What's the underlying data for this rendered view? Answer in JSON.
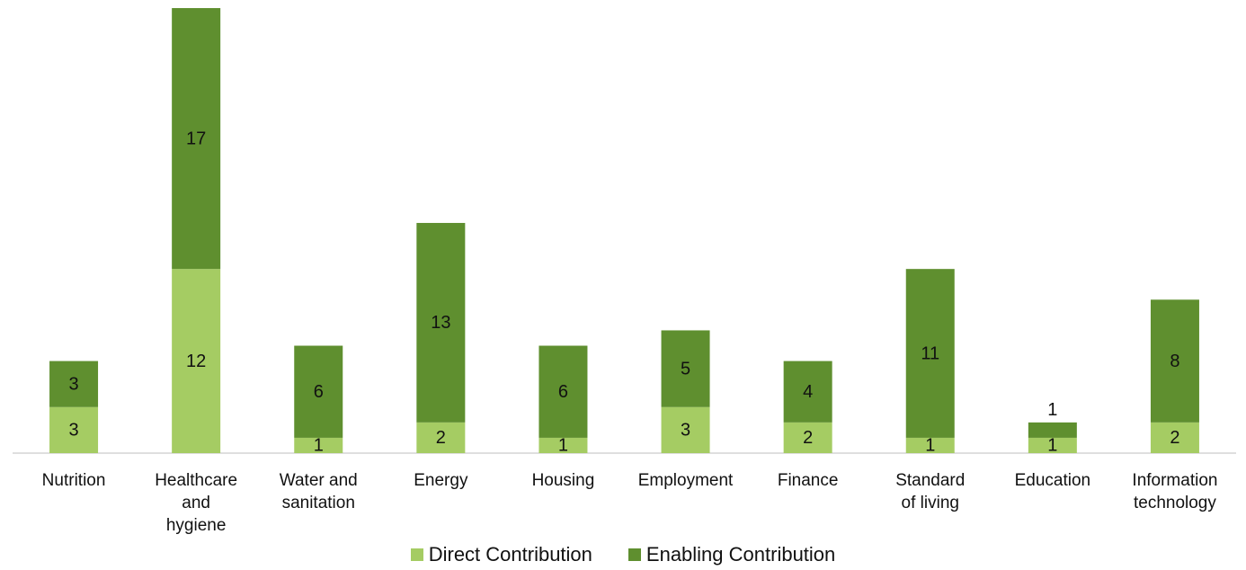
{
  "chart_data": {
    "type": "stacked_bar",
    "categories": [
      "Nutrition",
      "Healthcare and hygiene",
      "Water and sanitation",
      "Energy",
      "Housing",
      "Employment",
      "Finance",
      "Standard of living",
      "Education",
      "Information technology"
    ],
    "series": [
      {
        "name": "Direct Contribution",
        "color": "#a5cc63",
        "values": [
          3,
          12,
          1,
          2,
          1,
          3,
          2,
          1,
          1,
          2
        ]
      },
      {
        "name": "Enabling Contribution",
        "color": "#5f8f2f",
        "values": [
          3,
          17,
          6,
          13,
          6,
          5,
          4,
          11,
          1,
          8
        ]
      }
    ],
    "legend": "bottom"
  }
}
